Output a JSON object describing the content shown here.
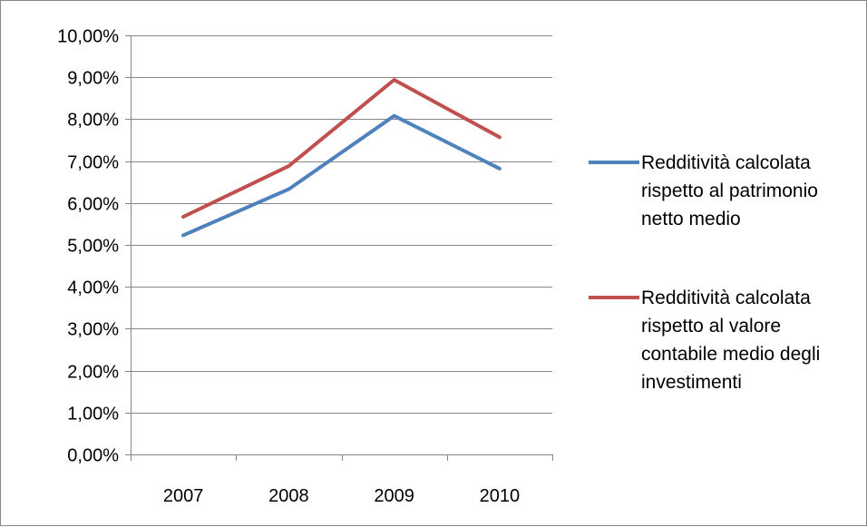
{
  "chart_data": {
    "type": "line",
    "title": "",
    "xlabel": "",
    "ylabel": "",
    "categories": [
      "2007",
      "2008",
      "2009",
      "2010"
    ],
    "ylim": [
      0,
      0.1
    ],
    "y_tick_values": [
      0,
      0.01,
      0.02,
      0.03,
      0.04,
      0.05,
      0.06,
      0.07,
      0.08,
      0.09,
      0.1
    ],
    "y_tick_labels": [
      "0,00%",
      "1,00%",
      "2,00%",
      "3,00%",
      "4,00%",
      "5,00%",
      "6,00%",
      "7,00%",
      "8,00%",
      "9,00%",
      "10,00%"
    ],
    "grid": "horizontal",
    "legend_position": "right",
    "series": [
      {
        "name": "Redditività calcolata rispetto al patrimonio netto medio",
        "legend_lines": [
          "Redditività calcolata",
          "rispetto al patrimonio",
          "netto medio"
        ],
        "color": "#4F81BD",
        "values": [
          0.0523,
          0.0633,
          0.0808,
          0.0682
        ]
      },
      {
        "name": "Redditività calcolata rispetto al valore contabile medio degli investimenti",
        "legend_lines": [
          "Redditività calcolata",
          "rispetto al valore",
          "contabile medio degli",
          "investimenti"
        ],
        "color": "#C0504D",
        "values": [
          0.0567,
          0.0688,
          0.0894,
          0.0757
        ]
      }
    ]
  }
}
